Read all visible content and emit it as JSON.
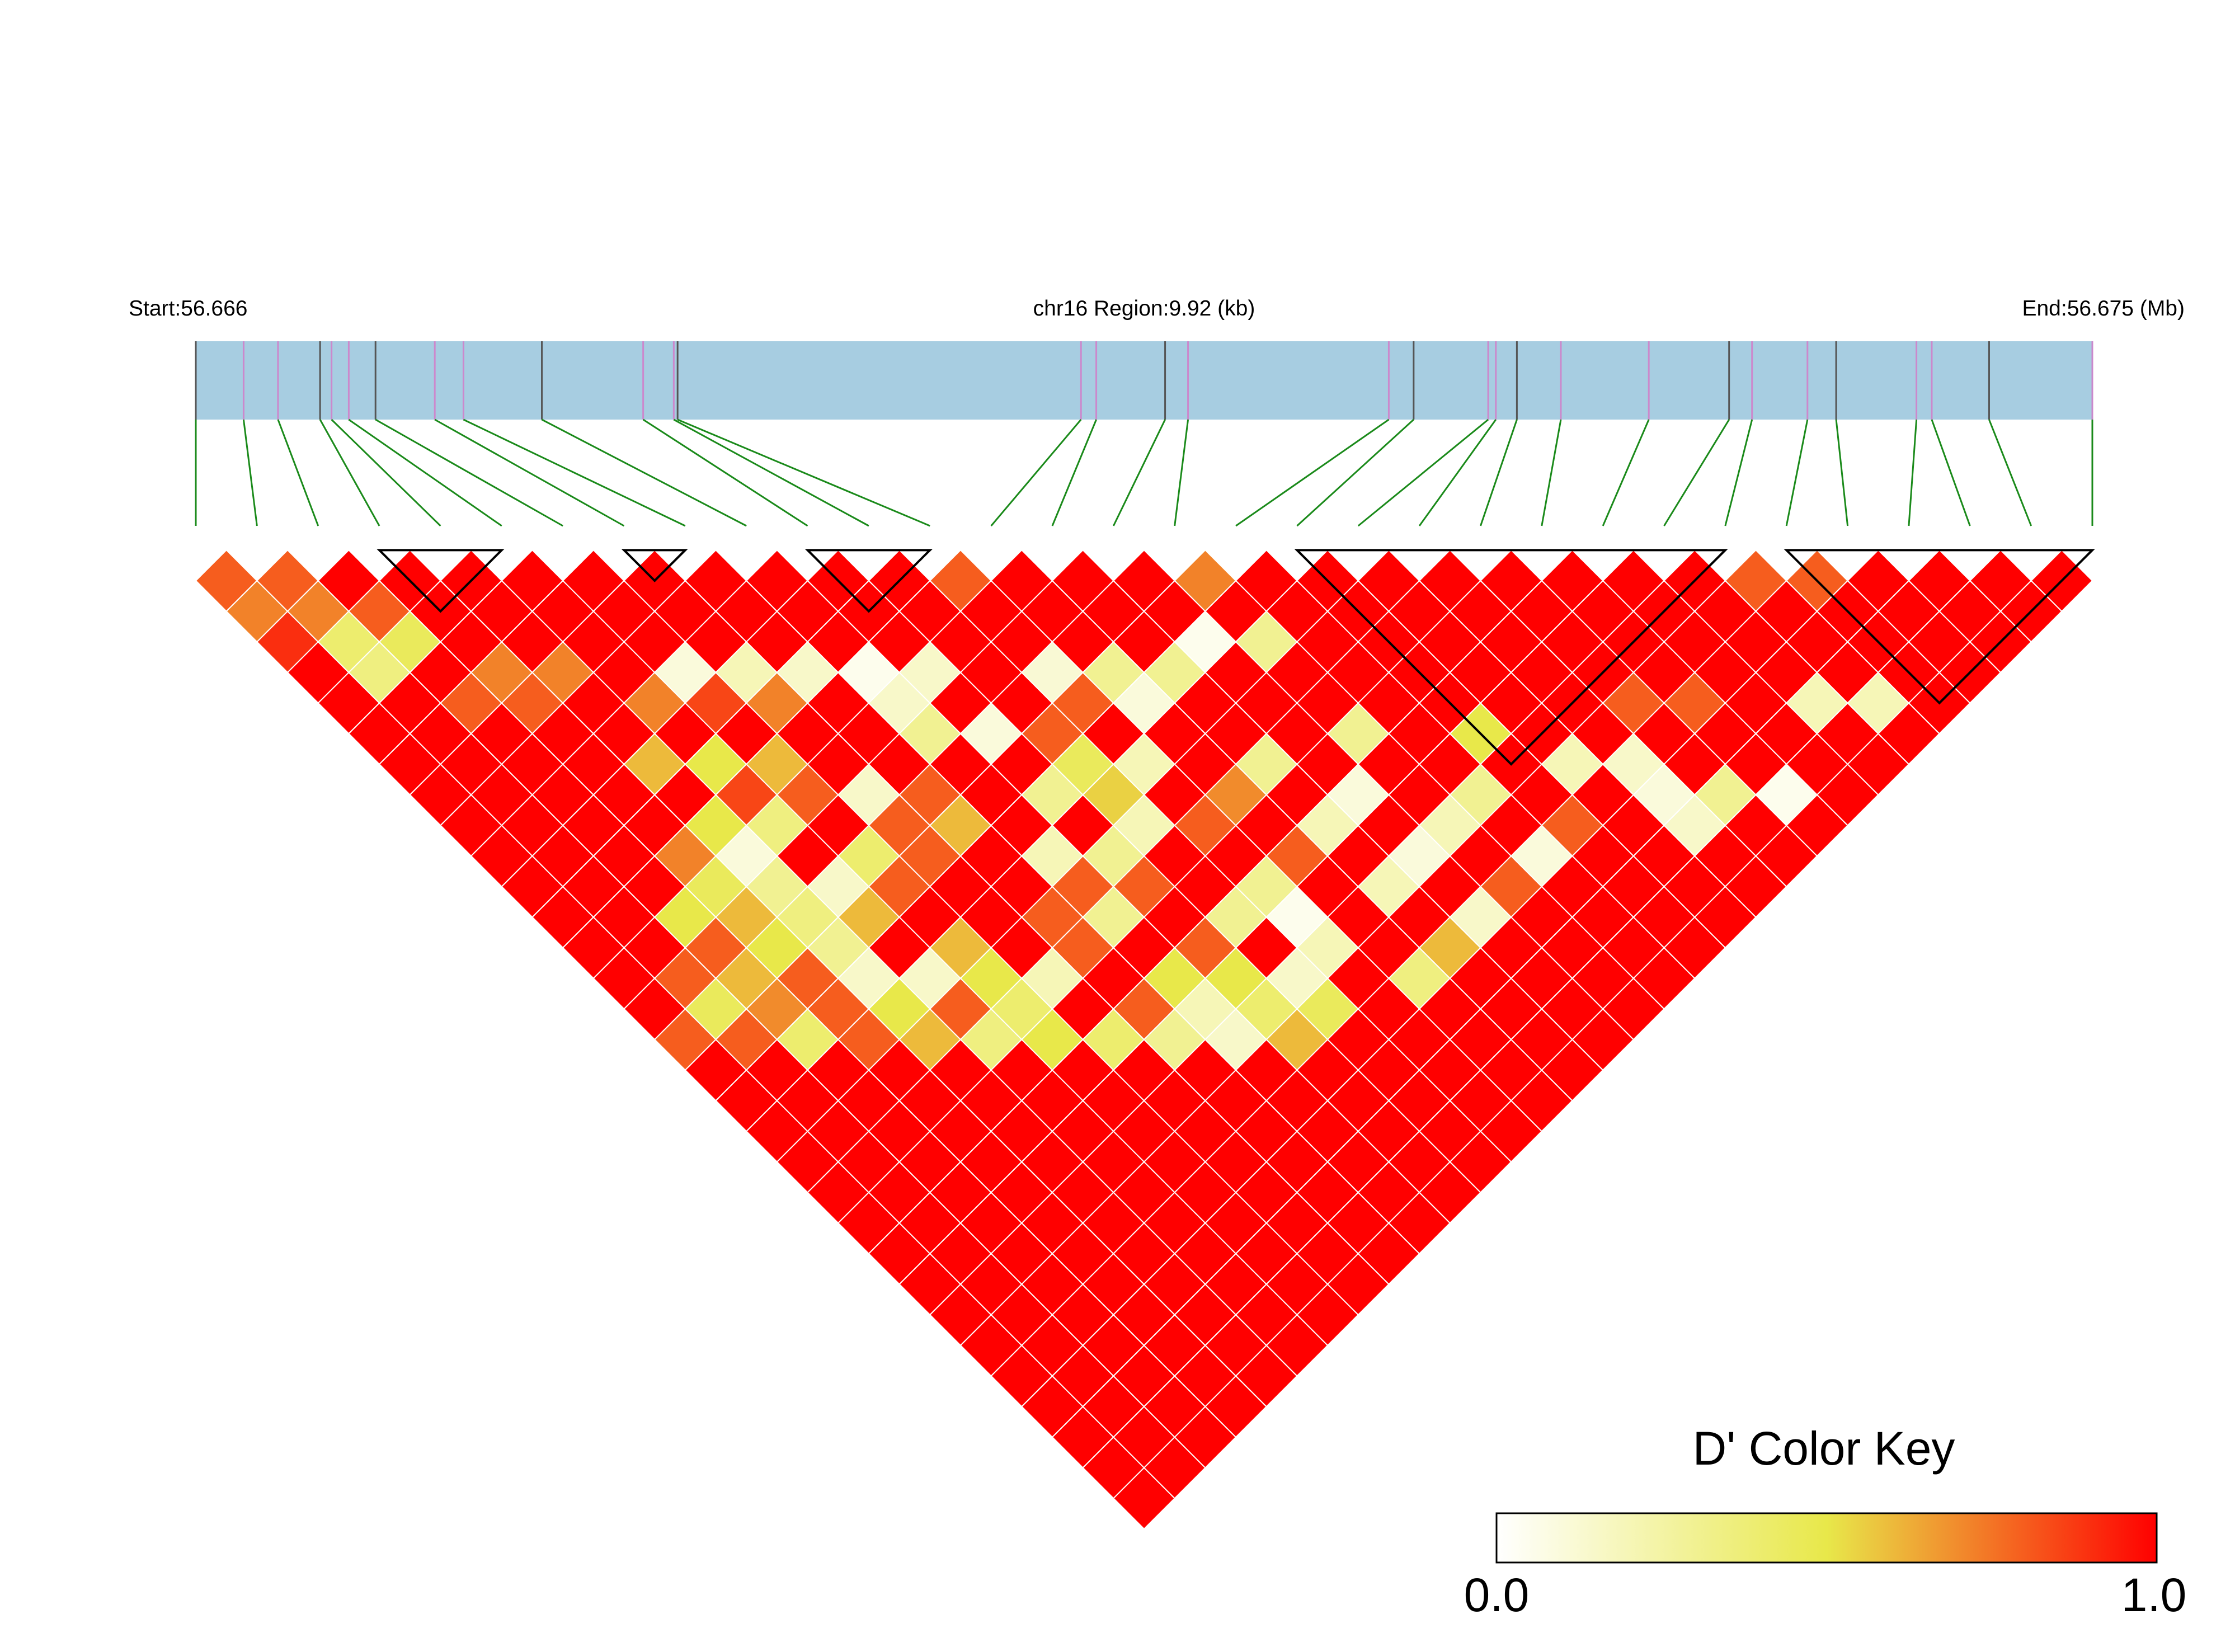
{
  "header": {
    "start_label": "Start:56.666",
    "region_label": "chr16 Region:9.92 (kb)",
    "end_label": "End:56.675 (Mb)"
  },
  "color_key": {
    "title": "D' Color Key",
    "min_label": "0.0",
    "max_label": "1.0",
    "stops": [
      "#ffffff",
      "#e8e84a",
      "#ff0000"
    ]
  },
  "colors": {
    "track_fill": "#a7cde1",
    "track_tick_grey": "#555555",
    "track_tick_pink": "#cc88cc",
    "connector_green": "#1a8a1a",
    "block_outline": "#000000"
  },
  "chart_data": {
    "type": "heatmap",
    "chromosome": "chr16",
    "region_start_mb": 56.666,
    "region_end_mb": 56.675,
    "region_length_kb": 9.92,
    "n_snps": 32,
    "snp_positions_kb": [
      0,
      0.25,
      0.43,
      0.65,
      0.71,
      0.8,
      0.94,
      1.25,
      1.4,
      1.81,
      2.34,
      2.5,
      2.52,
      4.63,
      4.71,
      5.07,
      5.19,
      6.24,
      6.37,
      6.76,
      6.8,
      6.91,
      7.14,
      7.6,
      8.02,
      8.14,
      8.43,
      8.58,
      9.0,
      9.08,
      9.38,
      9.92
    ],
    "value_range": [
      0.0,
      1.0
    ],
    "dprime_adjacent": [
      0.8,
      0.8,
      1.0,
      1.0,
      1.0,
      1.0,
      1.0,
      1.0,
      1.0,
      1.0,
      1.0,
      1.0,
      0.8,
      1.0,
      1.0,
      1.0,
      0.72,
      1.0,
      1.0,
      1.0,
      1.0,
      1.0,
      1.0,
      1.0,
      1.0,
      0.8,
      0.8,
      1.0,
      1.0,
      1.0,
      1.0
    ],
    "dprime_pairs": [
      [
        0,
        2,
        0.72
      ],
      [
        1,
        3,
        0.72
      ],
      [
        2,
        4,
        0.8
      ],
      [
        0,
        3,
        0.9
      ],
      [
        1,
        4,
        0.4
      ],
      [
        0,
        4,
        1.0
      ],
      [
        1,
        5,
        0.35
      ],
      [
        2,
        5,
        0.45
      ],
      [
        3,
        7,
        0.72
      ],
      [
        4,
        8,
        0.72
      ],
      [
        2,
        7,
        0.8
      ],
      [
        3,
        8,
        0.8
      ],
      [
        6,
        10,
        0.1
      ],
      [
        7,
        11,
        0.2
      ],
      [
        9,
        13,
        0.05
      ],
      [
        13,
        17,
        0.3
      ],
      [
        14,
        18,
        0.3
      ],
      [
        15,
        18,
        0.05
      ],
      [
        12,
        16,
        0.12
      ],
      [
        16,
        19,
        0.3
      ],
      [
        5,
        10,
        0.72
      ],
      [
        6,
        11,
        0.85
      ],
      [
        7,
        12,
        0.72
      ],
      [
        8,
        12,
        0.15
      ],
      [
        9,
        14,
        0.15
      ],
      [
        10,
        14,
        0.15
      ],
      [
        12,
        17,
        0.8
      ],
      [
        13,
        18,
        0.1
      ],
      [
        11,
        17,
        0.8
      ],
      [
        22,
        27,
        0.8
      ],
      [
        21,
        26,
        0.8
      ],
      [
        5,
        12,
        0.5
      ],
      [
        4,
        11,
        0.6
      ],
      [
        6,
        13,
        0.6
      ],
      [
        9,
        15,
        0.3
      ],
      [
        10,
        16,
        0.1
      ],
      [
        11,
        18,
        0.45
      ],
      [
        12,
        19,
        0.2
      ],
      [
        14,
        21,
        0.3
      ],
      [
        16,
        22,
        0.3
      ],
      [
        18,
        24,
        0.5
      ],
      [
        19,
        26,
        0.2
      ],
      [
        20,
        27,
        0.15
      ],
      [
        24,
        29,
        0.2
      ],
      [
        25,
        30,
        0.2
      ],
      [
        5,
        13,
        0.85
      ],
      [
        6,
        14,
        0.8
      ],
      [
        7,
        15,
        0.15
      ],
      [
        8,
        16,
        0.8
      ],
      [
        10,
        18,
        0.3
      ],
      [
        11,
        19,
        0.55
      ],
      [
        13,
        21,
        0.7
      ],
      [
        15,
        23,
        0.1
      ],
      [
        17,
        25,
        0.3
      ],
      [
        20,
        28,
        0.1
      ],
      [
        21,
        29,
        0.3
      ],
      [
        22,
        30,
        0.05
      ],
      [
        4,
        13,
        0.5
      ],
      [
        5,
        14,
        0.35
      ],
      [
        7,
        16,
        0.8
      ],
      [
        8,
        17,
        0.6
      ],
      [
        11,
        20,
        0.2
      ],
      [
        12,
        21,
        0.8
      ],
      [
        14,
        23,
        0.2
      ],
      [
        16,
        25,
        0.2
      ],
      [
        18,
        27,
        0.8
      ],
      [
        20,
        29,
        0.15
      ],
      [
        3,
        13,
        0.72
      ],
      [
        4,
        14,
        0.1
      ],
      [
        6,
        16,
        0.4
      ],
      [
        7,
        17,
        0.8
      ],
      [
        9,
        19,
        0.2
      ],
      [
        10,
        20,
        0.3
      ],
      [
        13,
        23,
        0.8
      ],
      [
        15,
        25,
        0.1
      ],
      [
        17,
        27,
        0.1
      ],
      [
        3,
        14,
        0.45
      ],
      [
        4,
        15,
        0.3
      ],
      [
        5,
        16,
        0.15
      ],
      [
        6,
        17,
        0.8
      ],
      [
        9,
        20,
        0.8
      ],
      [
        10,
        21,
        0.8
      ],
      [
        12,
        23,
        0.3
      ],
      [
        14,
        25,
        0.2
      ],
      [
        16,
        27,
        0.8
      ],
      [
        2,
        14,
        0.5
      ],
      [
        3,
        15,
        0.6
      ],
      [
        4,
        16,
        0.35
      ],
      [
        5,
        17,
        0.6
      ],
      [
        8,
        20,
        0.8
      ],
      [
        9,
        21,
        0.3
      ],
      [
        11,
        23,
        0.3
      ],
      [
        12,
        24,
        0.05
      ],
      [
        15,
        27,
        0.15
      ],
      [
        2,
        15,
        0.8
      ],
      [
        3,
        16,
        0.5
      ],
      [
        4,
        17,
        0.3
      ],
      [
        6,
        19,
        0.6
      ],
      [
        8,
        21,
        0.8
      ],
      [
        10,
        23,
        0.8
      ],
      [
        12,
        25,
        0.2
      ],
      [
        14,
        27,
        0.6
      ],
      [
        1,
        15,
        0.8
      ],
      [
        2,
        16,
        0.6
      ],
      [
        3,
        17,
        0.8
      ],
      [
        4,
        18,
        0.15
      ],
      [
        5,
        19,
        0.15
      ],
      [
        6,
        20,
        0.5
      ],
      [
        7,
        21,
        0.2
      ],
      [
        9,
        23,
        0.5
      ],
      [
        10,
        24,
        0.5
      ],
      [
        11,
        25,
        0.15
      ],
      [
        13,
        27,
        0.35
      ],
      [
        1,
        16,
        0.45
      ],
      [
        2,
        17,
        0.7
      ],
      [
        3,
        18,
        0.8
      ],
      [
        4,
        19,
        0.5
      ],
      [
        5,
        20,
        0.8
      ],
      [
        6,
        21,
        0.4
      ],
      [
        8,
        23,
        0.8
      ],
      [
        9,
        24,
        0.2
      ],
      [
        10,
        25,
        0.4
      ],
      [
        11,
        26,
        0.45
      ],
      [
        0,
        16,
        0.8
      ],
      [
        1,
        17,
        0.8
      ],
      [
        2,
        18,
        0.4
      ],
      [
        3,
        19,
        0.8
      ],
      [
        4,
        20,
        0.6
      ],
      [
        5,
        21,
        0.35
      ],
      [
        6,
        22,
        0.5
      ],
      [
        7,
        23,
        0.4
      ],
      [
        8,
        24,
        0.3
      ],
      [
        9,
        25,
        0.15
      ],
      [
        10,
        26,
        0.6
      ]
    ],
    "haplotype_blocks": [
      [
        3,
        5
      ],
      [
        7,
        8
      ],
      [
        10,
        12
      ],
      [
        18,
        25
      ],
      [
        26,
        31
      ]
    ],
    "legend": "bottom-right color key"
  }
}
